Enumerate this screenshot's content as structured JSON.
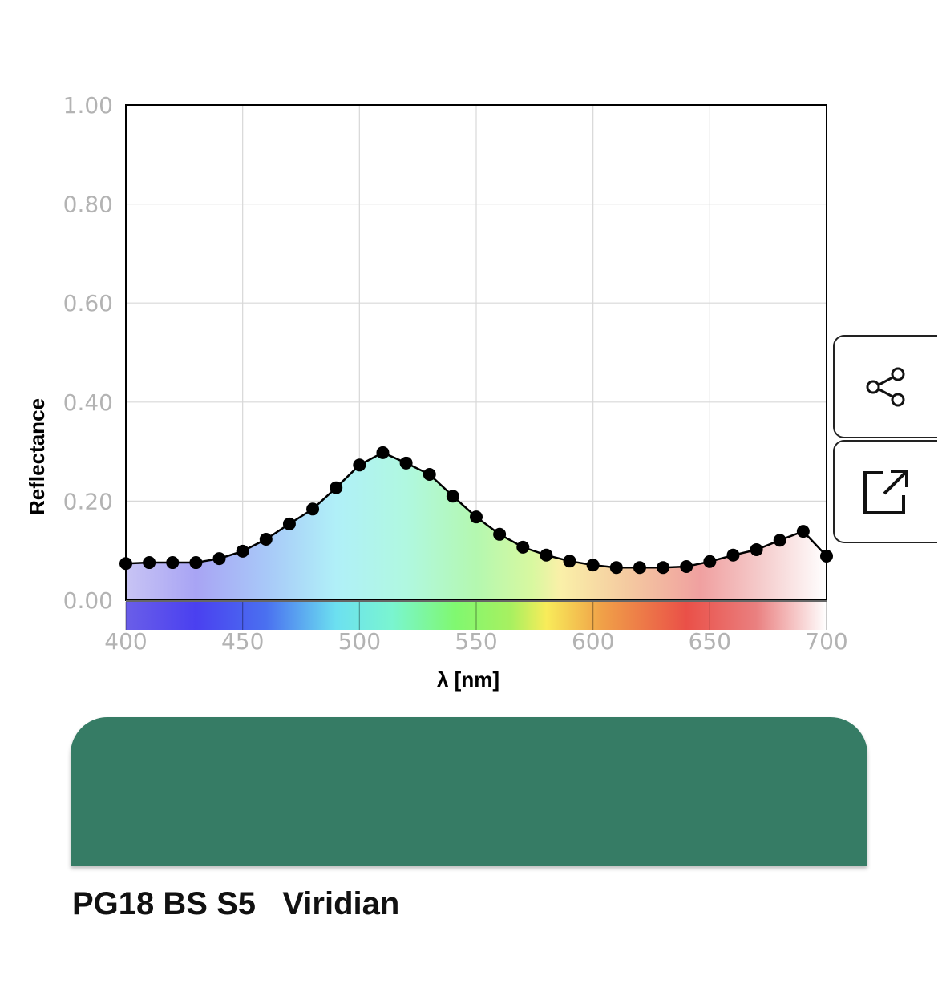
{
  "chart_data": {
    "type": "line",
    "xlabel": "λ [nm]",
    "ylabel": "Reflectance",
    "xlim": [
      400,
      700
    ],
    "ylim": [
      0,
      1
    ],
    "x_ticks": [
      "400",
      "450",
      "500",
      "550",
      "600",
      "650",
      "700"
    ],
    "y_ticks": [
      "0.00",
      "0.20",
      "0.40",
      "0.60",
      "0.80",
      "1.00"
    ],
    "grid": true,
    "x": [
      400,
      410,
      420,
      430,
      440,
      450,
      460,
      470,
      480,
      490,
      500,
      510,
      520,
      530,
      540,
      550,
      560,
      570,
      580,
      590,
      600,
      610,
      620,
      630,
      640,
      650,
      660,
      670,
      680,
      690,
      700
    ],
    "values": [
      0.074,
      0.076,
      0.076,
      0.076,
      0.084,
      0.099,
      0.123,
      0.154,
      0.184,
      0.227,
      0.273,
      0.298,
      0.277,
      0.254,
      0.21,
      0.168,
      0.133,
      0.107,
      0.091,
      0.079,
      0.071,
      0.066,
      0.066,
      0.066,
      0.068,
      0.078,
      0.091,
      0.102,
      0.121,
      0.139,
      0.089
    ],
    "line_color": "#000000",
    "fill": "visible-spectrum gradient under curve"
  },
  "buttons": {
    "share": "share-icon",
    "open_external": "external-link-icon"
  },
  "swatch": {
    "color": "#367c65"
  },
  "title": "PG18 BS S5   Viridian"
}
